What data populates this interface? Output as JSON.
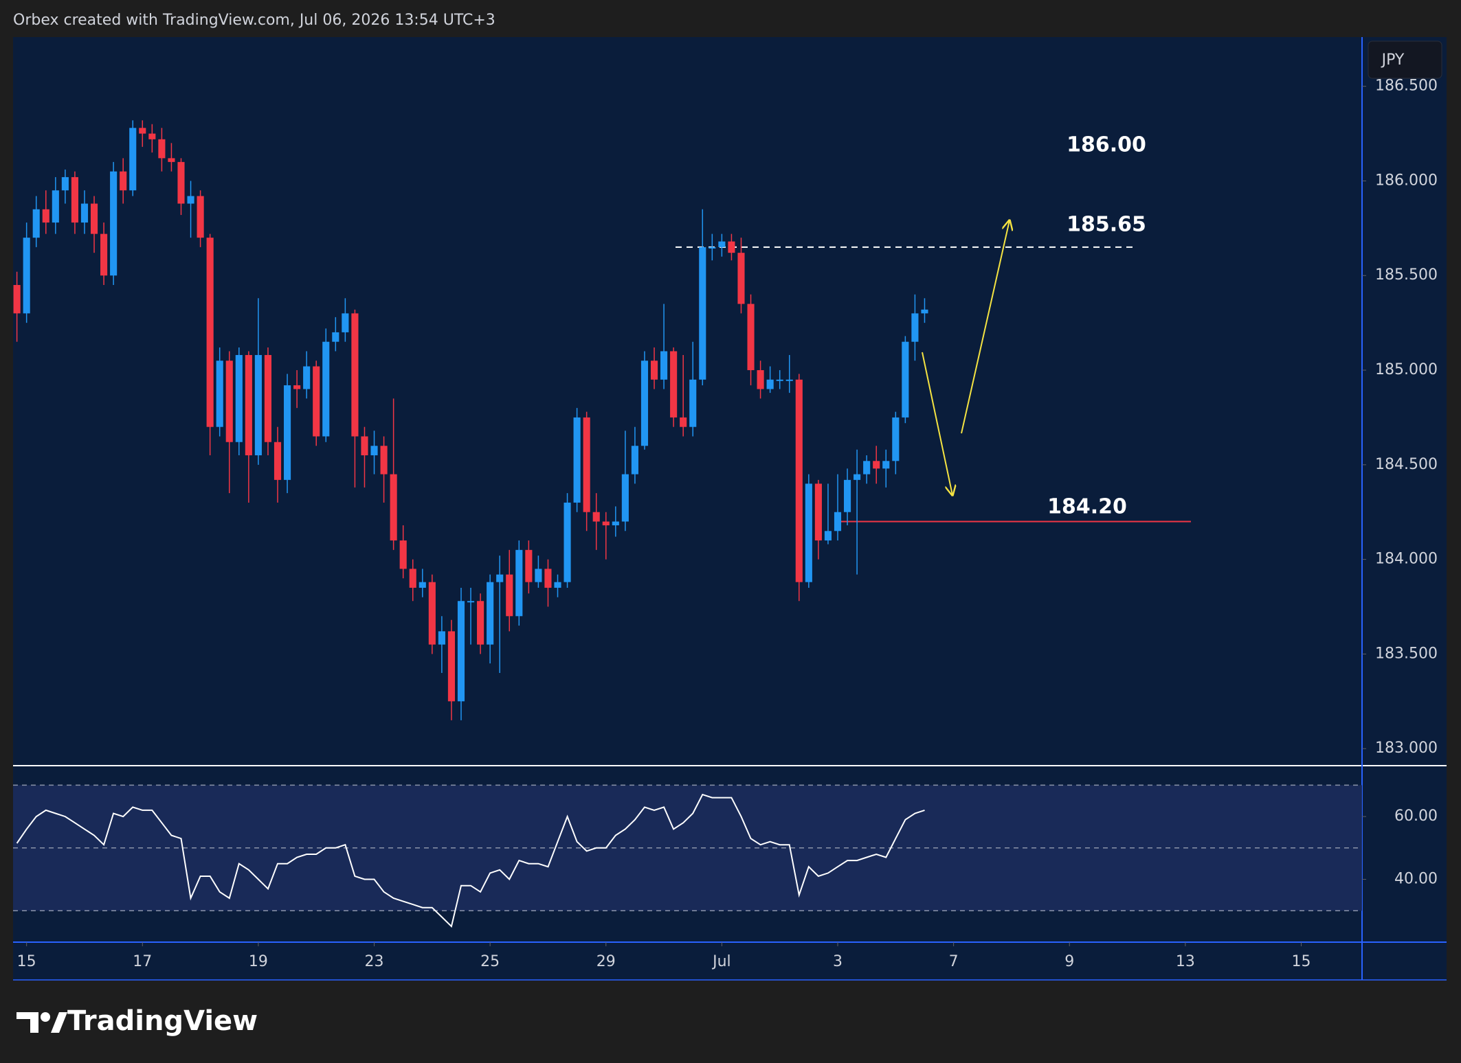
{
  "chart_data": [
    {
      "type": "candlestick",
      "title": "Orbex created with TradingView.com, Jul 06, 2026 13:54 UTC+3",
      "currency": "JPY",
      "brand": "TradingView",
      "colors": {
        "up": "#2196f3",
        "down": "#f23645"
      },
      "xlim": [
        -0.4,
        139.3
      ],
      "xticks": [
        {
          "value": 1,
          "label": "15"
        },
        {
          "value": 13,
          "label": "17"
        },
        {
          "value": 25,
          "label": "19"
        },
        {
          "value": 37,
          "label": "23"
        },
        {
          "value": 49,
          "label": "25"
        },
        {
          "value": 61,
          "label": "29"
        },
        {
          "value": 73,
          "label": "Jul"
        },
        {
          "value": 85,
          "label": "3"
        },
        {
          "value": 97,
          "label": "7"
        },
        {
          "value": 109,
          "label": "9"
        },
        {
          "value": 121,
          "label": "13"
        },
        {
          "value": 133,
          "label": "15"
        }
      ],
      "ylim": [
        182.91,
        186.76
      ],
      "yticks": [
        {
          "value": 186.5,
          "label": "186.500"
        },
        {
          "value": 186,
          "label": "186.000"
        },
        {
          "value": 185.5,
          "label": "185.500"
        },
        {
          "value": 185,
          "label": "185.000"
        },
        {
          "value": 184.5,
          "label": "184.500"
        },
        {
          "value": 184,
          "label": "184.000"
        },
        {
          "value": 183.5,
          "label": "183.500"
        },
        {
          "value": 183,
          "label": "183.000"
        }
      ],
      "open": [
        185.45,
        185.3,
        185.7,
        185.85,
        185.78,
        185.95,
        186.02,
        185.78,
        185.88,
        185.72,
        185.5,
        186.05,
        185.95,
        186.28,
        186.25,
        186.22,
        186.12,
        186.1,
        185.88,
        185.92,
        185.7,
        184.7,
        185.05,
        184.62,
        185.08,
        184.55,
        185.08,
        184.62,
        184.42,
        184.92,
        184.9,
        185.02,
        184.65,
        185.15,
        185.2,
        185.3,
        184.65,
        184.55,
        184.6,
        184.45,
        184.1,
        183.95,
        183.85,
        183.88,
        183.55,
        183.62,
        183.25,
        183.78,
        183.78,
        183.55,
        183.88,
        183.92,
        183.7,
        184.05,
        183.88,
        183.95,
        183.85,
        183.88,
        184.3,
        184.75,
        184.25,
        184.2,
        184.18,
        184.2,
        184.45,
        184.6,
        185.05,
        184.95,
        185.1,
        184.75,
        184.7,
        184.95,
        185.65,
        185.65,
        185.68,
        185.62,
        185.35,
        185.0,
        184.9,
        184.95,
        184.95,
        184.95,
        183.88,
        184.4,
        184.1,
        184.15,
        184.25,
        184.42,
        184.45,
        184.52,
        184.48,
        184.52,
        184.75,
        185.15,
        185.3
      ],
      "high": [
        185.52,
        185.78,
        185.92,
        185.95,
        186.02,
        186.06,
        186.05,
        185.95,
        185.92,
        185.78,
        186.1,
        186.12,
        186.32,
        186.32,
        186.3,
        186.28,
        186.2,
        186.12,
        186.0,
        185.95,
        185.72,
        185.12,
        185.1,
        185.12,
        185.1,
        185.38,
        185.12,
        184.7,
        184.98,
        185.0,
        185.1,
        185.05,
        185.22,
        185.28,
        185.38,
        185.32,
        184.7,
        184.68,
        184.65,
        184.85,
        184.18,
        184.0,
        183.95,
        183.92,
        183.7,
        183.68,
        183.85,
        183.85,
        183.82,
        183.92,
        184.02,
        184.05,
        184.1,
        184.1,
        184.02,
        184.0,
        183.92,
        184.35,
        184.8,
        184.78,
        184.35,
        184.25,
        184.28,
        184.68,
        184.7,
        185.1,
        185.12,
        185.35,
        185.12,
        185.08,
        185.15,
        185.85,
        185.72,
        185.72,
        185.72,
        185.7,
        185.4,
        185.05,
        185.02,
        185.0,
        185.08,
        184.98,
        184.45,
        184.42,
        184.4,
        184.45,
        184.48,
        184.58,
        184.55,
        184.6,
        184.58,
        184.78,
        185.18,
        185.4,
        185.38
      ],
      "low": [
        185.15,
        185.25,
        185.65,
        185.72,
        185.72,
        185.88,
        185.72,
        185.72,
        185.62,
        185.45,
        185.45,
        185.88,
        185.92,
        186.18,
        186.15,
        186.05,
        186.05,
        185.82,
        185.7,
        185.65,
        184.55,
        184.65,
        184.35,
        184.55,
        184.3,
        184.5,
        184.55,
        184.3,
        184.35,
        184.8,
        184.85,
        184.6,
        184.62,
        185.1,
        185.15,
        184.38,
        184.38,
        184.45,
        184.3,
        184.05,
        183.9,
        183.78,
        183.8,
        183.5,
        183.4,
        183.15,
        183.15,
        183.55,
        183.5,
        183.45,
        183.4,
        183.62,
        183.65,
        183.82,
        183.85,
        183.75,
        183.8,
        183.85,
        184.25,
        184.15,
        184.05,
        184.0,
        184.12,
        184.15,
        184.4,
        184.58,
        184.9,
        184.9,
        184.7,
        184.65,
        184.65,
        184.92,
        185.58,
        185.6,
        185.58,
        185.3,
        184.92,
        184.85,
        184.88,
        184.9,
        184.88,
        183.78,
        183.85,
        184.0,
        184.08,
        184.1,
        184.18,
        183.92,
        184.4,
        184.4,
        184.38,
        184.45,
        184.72,
        185.05,
        185.25
      ],
      "close": [
        185.3,
        185.7,
        185.85,
        185.78,
        185.95,
        186.02,
        185.78,
        185.88,
        185.72,
        185.5,
        186.05,
        185.95,
        186.28,
        186.25,
        186.22,
        186.12,
        186.1,
        185.88,
        185.92,
        185.7,
        184.7,
        185.05,
        184.62,
        185.08,
        184.55,
        185.08,
        184.62,
        184.42,
        184.92,
        184.9,
        185.02,
        184.65,
        185.15,
        185.2,
        185.3,
        184.65,
        184.55,
        184.6,
        184.45,
        184.1,
        183.95,
        183.85,
        183.88,
        183.55,
        183.62,
        183.25,
        183.78,
        183.78,
        183.55,
        183.88,
        183.92,
        183.7,
        184.05,
        183.88,
        183.95,
        183.85,
        183.88,
        184.3,
        184.75,
        184.25,
        184.2,
        184.18,
        184.2,
        184.45,
        184.6,
        185.05,
        184.95,
        185.1,
        184.75,
        184.7,
        184.95,
        185.65,
        185.65,
        185.68,
        185.62,
        185.35,
        185.0,
        184.9,
        184.95,
        184.95,
        184.95,
        183.88,
        184.4,
        184.1,
        184.15,
        184.25,
        184.42,
        184.45,
        184.52,
        184.48,
        184.52,
        184.75,
        185.15,
        185.3,
        185.32
      ],
      "annotations": [
        {
          "label": "186.00"
        },
        {
          "label": "185.65",
          "value": 185.65,
          "color": "#ffffff"
        },
        {
          "label": "184.20",
          "value": 184.2,
          "color": "#f23645"
        }
      ]
    },
    {
      "type": "line",
      "color": "#ffffff",
      "ylim": [
        20,
        76.2
      ],
      "yticks": [
        {
          "value": 60,
          "label": "60.00"
        },
        {
          "value": 40,
          "label": "40.00"
        }
      ],
      "bands": [
        70,
        50,
        30
      ],
      "values": [
        51.5,
        56,
        60,
        62,
        61,
        60,
        58,
        56,
        54,
        51,
        61,
        60,
        63,
        62,
        62,
        58,
        54,
        53,
        34,
        41,
        41,
        36,
        34,
        45,
        43,
        40,
        37,
        45,
        45,
        47,
        48,
        48,
        50,
        50,
        51,
        41,
        40,
        40,
        36,
        34,
        33,
        32,
        31,
        31,
        28,
        25,
        38,
        38,
        36,
        42,
        43,
        40,
        46,
        45,
        45,
        44,
        52,
        60,
        52,
        49,
        50,
        50,
        54,
        56,
        59,
        63,
        62,
        63,
        56,
        58,
        61,
        67,
        66,
        66,
        66,
        60,
        53,
        51,
        52,
        51,
        51,
        35,
        44,
        41,
        42,
        44,
        46,
        46,
        47,
        48,
        47,
        53,
        59,
        61,
        62
      ]
    }
  ]
}
